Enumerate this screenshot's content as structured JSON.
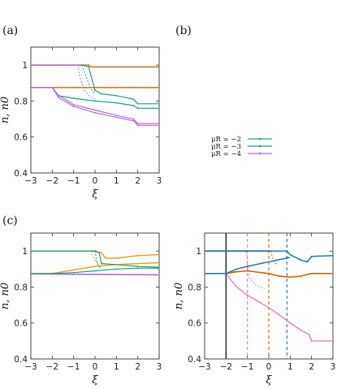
{
  "colors": {
    "orange": "#d95f02",
    "green": "#1b9e77",
    "purple": "#b366e8",
    "gold": "#e6a01e",
    "blue": "#1f78b4",
    "pink": "#e07bb3"
  },
  "labels": {
    "a": "(a)",
    "b": "(b)",
    "c": "(c)"
  },
  "legend": [
    {
      "label": "μR = −2",
      "color": "#1aa39a"
    },
    {
      "label": "μR = −3",
      "color": "#1b9e77"
    },
    {
      "label": "μR = −4",
      "color": "#b366e8"
    }
  ],
  "chart_data": [
    {
      "id": "a",
      "type": "line",
      "xlabel": "ξ",
      "ylabel": "n, n0",
      "xlim": [
        -3,
        3
      ],
      "ylim": [
        0.4,
        1.1
      ],
      "xticks": [
        "−3",
        "−2",
        "−1",
        "0",
        "1",
        "2",
        "3"
      ],
      "yticks": [
        "0.4",
        "0.6",
        "0.8",
        "1"
      ],
      "series": [
        {
          "color": "#d95f02",
          "dash": false,
          "width": 1.4,
          "points": [
            [
              -3,
              1
            ],
            [
              -0.3,
              1
            ],
            [
              -0.2,
              0.99
            ],
            [
              3,
              0.99
            ]
          ]
        },
        {
          "color": "#d95f02",
          "dash": false,
          "width": 1.4,
          "points": [
            [
              -3,
              0.875
            ],
            [
              3,
              0.875
            ]
          ]
        },
        {
          "color": "#1b9e77",
          "dash": false,
          "width": 1.2,
          "points": [
            [
              -3,
              1
            ],
            [
              -0.6,
              1
            ],
            [
              -0.3,
              0.99
            ],
            [
              0,
              0.86
            ],
            [
              0.3,
              0.84
            ],
            [
              1,
              0.83
            ],
            [
              1.8,
              0.81
            ],
            [
              2,
              0.785
            ],
            [
              3,
              0.785
            ]
          ]
        },
        {
          "color": "#1b9e77",
          "dash": false,
          "width": 1.2,
          "points": [
            [
              -3,
              0.875
            ],
            [
              -2,
              0.875
            ],
            [
              -1.7,
              0.83
            ],
            [
              -1,
              0.815
            ],
            [
              0,
              0.8
            ],
            [
              1,
              0.79
            ],
            [
              1.8,
              0.775
            ],
            [
              2,
              0.76
            ],
            [
              3,
              0.76
            ]
          ]
        },
        {
          "color": "#1b9e77",
          "dash": true,
          "width": 1.0,
          "points": [
            [
              -0.6,
              1
            ],
            [
              -0.4,
              0.93
            ],
            [
              -0.2,
              0.87
            ],
            [
              0,
              0.84
            ]
          ]
        },
        {
          "color": "#b366e8",
          "dash": false,
          "width": 1.2,
          "points": [
            [
              -3,
              1
            ],
            [
              -0.8,
              1
            ],
            [
              -0.75,
              1
            ]
          ]
        },
        {
          "color": "#b366e8",
          "dash": false,
          "width": 1.2,
          "points": [
            [
              -3,
              0.875
            ],
            [
              -2,
              0.875
            ],
            [
              -1.8,
              0.84
            ],
            [
              -1,
              0.78
            ],
            [
              0,
              0.75
            ],
            [
              1,
              0.72
            ],
            [
              1.8,
              0.7
            ],
            [
              2,
              0.675
            ],
            [
              3,
              0.675
            ]
          ]
        },
        {
          "color": "#b366e8",
          "dash": false,
          "width": 1.2,
          "points": [
            [
              -2,
              0.875
            ],
            [
              -1.7,
              0.82
            ],
            [
              -1,
              0.77
            ],
            [
              0,
              0.735
            ],
            [
              1,
              0.71
            ],
            [
              1.8,
              0.69
            ],
            [
              2,
              0.665
            ],
            [
              3,
              0.665
            ]
          ]
        },
        {
          "color": "#b366e8",
          "dash": true,
          "width": 1.0,
          "points": [
            [
              -0.8,
              1
            ],
            [
              -0.7,
              0.93
            ],
            [
              -0.5,
              0.86
            ],
            [
              -0.2,
              0.82
            ],
            [
              0,
              0.81
            ]
          ]
        }
      ]
    },
    {
      "id": "c-left",
      "type": "line",
      "xlabel": "ξ",
      "ylabel": "n, n0",
      "xlim": [
        -3,
        3
      ],
      "ylim": [
        0.4,
        1.1
      ],
      "xticks": [
        "−3",
        "−2",
        "−1",
        "0",
        "1",
        "2",
        "3"
      ],
      "yticks": [
        "0.4",
        "0.6",
        "0.8",
        "1"
      ],
      "series": [
        {
          "color": "#b366e8",
          "dash": false,
          "width": 1.2,
          "points": [
            [
              -3,
              1
            ],
            [
              0,
              1
            ],
            [
              0.1,
              1
            ]
          ]
        },
        {
          "color": "#b366e8",
          "dash": false,
          "width": 1.6,
          "points": [
            [
              -3,
              0.873
            ],
            [
              3,
              0.868
            ]
          ]
        },
        {
          "color": "#e6a01e",
          "dash": false,
          "width": 1.4,
          "points": [
            [
              -3,
              1
            ],
            [
              -0.1,
              1
            ],
            [
              0.3,
              0.99
            ],
            [
              0.5,
              0.96
            ],
            [
              1,
              0.96
            ],
            [
              2,
              0.975
            ],
            [
              3,
              0.98
            ]
          ]
        },
        {
          "color": "#e6a01e",
          "dash": false,
          "width": 1.4,
          "points": [
            [
              -3,
              0.875
            ],
            [
              -2,
              0.875
            ],
            [
              -1,
              0.895
            ],
            [
              0,
              0.915
            ],
            [
              1,
              0.925
            ],
            [
              2,
              0.93
            ],
            [
              3,
              0.935
            ]
          ]
        },
        {
          "color": "#e6a01e",
          "dash": true,
          "width": 1.0,
          "points": [
            [
              -0.2,
              1
            ],
            [
              0,
              0.95
            ],
            [
              0.2,
              0.92
            ]
          ]
        },
        {
          "color": "#1b9e77",
          "dash": false,
          "width": 1.2,
          "points": [
            [
              -3,
              1
            ],
            [
              0,
              1
            ],
            [
              0.2,
              0.99
            ],
            [
              0.3,
              0.93
            ],
            [
              1,
              0.925
            ],
            [
              2,
              0.915
            ],
            [
              3,
              0.91
            ]
          ]
        },
        {
          "color": "#1b9e77",
          "dash": false,
          "width": 1.2,
          "points": [
            [
              -3,
              0.875
            ],
            [
              -2,
              0.875
            ],
            [
              -1,
              0.88
            ],
            [
              0,
              0.89
            ],
            [
              1,
              0.9
            ],
            [
              2,
              0.905
            ],
            [
              3,
              0.905
            ]
          ]
        },
        {
          "color": "#1b9e77",
          "dash": true,
          "width": 1.0,
          "points": [
            [
              0,
              1
            ],
            [
              0.1,
              0.93
            ],
            [
              0.3,
              0.9
            ]
          ]
        }
      ]
    },
    {
      "id": "c-right",
      "type": "line",
      "xlabel": "ξ",
      "ylabel": "n, n0",
      "xlim": [
        -3,
        3
      ],
      "ylim": [
        0.4,
        1.1
      ],
      "xticks": [
        "−3",
        "−2",
        "−1",
        "0",
        "1",
        "2",
        "3"
      ],
      "yticks": [
        "0.4",
        "0.6",
        "0.8",
        "1"
      ],
      "vlines": [
        {
          "x": -2,
          "color": "#111111",
          "dash": false
        },
        {
          "x": -1,
          "color": "#e07bb3",
          "dash": true
        },
        {
          "x": 0,
          "color": "#d95f02",
          "dash": true
        },
        {
          "x": 0.85,
          "color": "#1f78b4",
          "dash": true
        }
      ],
      "series": [
        {
          "color": "#e07bb3",
          "dash": false,
          "width": 1.3,
          "points": [
            [
              -3,
              1
            ],
            [
              -1.1,
              1
            ],
            [
              -1.05,
              1
            ]
          ]
        },
        {
          "color": "#e07bb3",
          "dash": false,
          "width": 1.3,
          "points": [
            [
              -3,
              0.875
            ],
            [
              -2,
              0.875
            ],
            [
              -1.5,
              0.8
            ],
            [
              -1,
              0.755
            ],
            [
              -0.5,
              0.72
            ],
            [
              0,
              0.685
            ],
            [
              0.5,
              0.645
            ],
            [
              1,
              0.6
            ],
            [
              1.5,
              0.56
            ],
            [
              1.9,
              0.535
            ],
            [
              2,
              0.5
            ],
            [
              3,
              0.5
            ]
          ]
        },
        {
          "color": "#e07bb3",
          "dash": true,
          "width": 1.0,
          "points": [
            [
              -1.05,
              1
            ],
            [
              -1,
              0.93
            ],
            [
              -0.9,
              0.85
            ],
            [
              -0.6,
              0.81
            ],
            [
              -0.2,
              0.79
            ]
          ]
        },
        {
          "color": "#d95f02",
          "dash": false,
          "width": 1.6,
          "points": [
            [
              -3,
              1
            ],
            [
              0,
              1
            ],
            [
              0.1,
              1
            ]
          ]
        },
        {
          "color": "#d95f02",
          "dash": false,
          "width": 1.6,
          "points": [
            [
              -3,
              0.875
            ],
            [
              -2,
              0.875
            ],
            [
              -1.5,
              0.885
            ],
            [
              -1,
              0.89
            ],
            [
              0,
              0.875
            ],
            [
              0.5,
              0.86
            ],
            [
              1,
              0.855
            ],
            [
              1.5,
              0.86
            ],
            [
              1.8,
              0.87
            ],
            [
              2,
              0.875
            ],
            [
              3,
              0.875
            ]
          ]
        },
        {
          "color": "#d95f02",
          "dash": true,
          "width": 1.0,
          "points": [
            [
              0.1,
              1
            ],
            [
              0.2,
              0.95
            ],
            [
              0.4,
              0.92
            ]
          ]
        },
        {
          "color": "#1f78b4",
          "dash": false,
          "width": 1.5,
          "points": [
            [
              -3,
              1
            ],
            [
              0.85,
              1
            ],
            [
              1,
              0.98
            ],
            [
              1.5,
              0.95
            ],
            [
              1.8,
              0.94
            ],
            [
              2,
              0.97
            ],
            [
              3,
              0.975
            ]
          ]
        },
        {
          "color": "#1f78b4",
          "dash": false,
          "width": 1.5,
          "points": [
            [
              -3,
              0.875
            ],
            [
              -2,
              0.875
            ],
            [
              -1.5,
              0.9
            ],
            [
              -1,
              0.915
            ],
            [
              0,
              0.94
            ],
            [
              0.8,
              0.96
            ],
            [
              1,
              0.965
            ]
          ]
        }
      ]
    }
  ]
}
